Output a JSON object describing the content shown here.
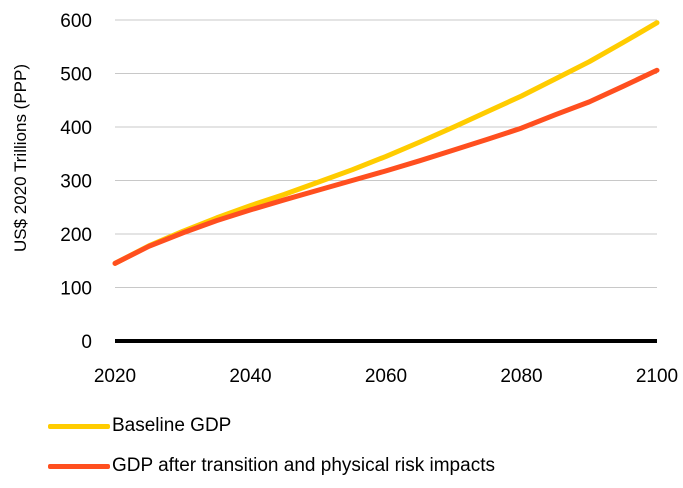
{
  "chart_data": {
    "type": "line",
    "ylabel": "US$ 2020 Trillions (PPP)",
    "xlabel": "",
    "xlim": [
      2020,
      2100
    ],
    "ylim": [
      0,
      600
    ],
    "x_ticks": [
      "2020",
      "2040",
      "2060",
      "2080",
      "2100"
    ],
    "y_ticks": [
      "0",
      "100",
      "200",
      "300",
      "400",
      "500",
      "600"
    ],
    "grid": true,
    "legend_position": "bottom",
    "series": [
      {
        "name": "Baseline GDP",
        "color": "#FFCC00",
        "x": [
          2020,
          2025,
          2030,
          2035,
          2040,
          2045,
          2050,
          2055,
          2060,
          2065,
          2070,
          2075,
          2080,
          2085,
          2090,
          2095,
          2100
        ],
        "values": [
          145,
          178,
          205,
          230,
          253,
          274,
          297,
          320,
          345,
          372,
          400,
          429,
          458,
          490,
          522,
          558,
          595
        ]
      },
      {
        "name": "GDP after transition and physical risk impacts",
        "color": "#FF4F1F",
        "x": [
          2020,
          2025,
          2030,
          2035,
          2040,
          2045,
          2050,
          2055,
          2060,
          2065,
          2070,
          2075,
          2080,
          2085,
          2090,
          2095,
          2100
        ],
        "values": [
          145,
          177,
          202,
          225,
          245,
          264,
          282,
          300,
          318,
          337,
          357,
          377,
          398,
          423,
          447,
          476,
          506
        ]
      }
    ]
  }
}
